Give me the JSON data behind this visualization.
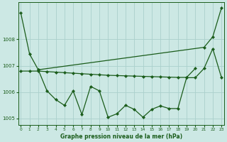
{
  "title": "Graphe pression niveau de la mer (hPa)",
  "bg_color": "#cce8e4",
  "grid_color": "#aad0cc",
  "line_color": "#1a5c1a",
  "hours": [
    0,
    1,
    2,
    3,
    4,
    5,
    6,
    7,
    8,
    9,
    10,
    11,
    12,
    13,
    14,
    15,
    16,
    17,
    18,
    19,
    20,
    21,
    22,
    23
  ],
  "line1_x": [
    0,
    1,
    2,
    21,
    22,
    23
  ],
  "line1_y": [
    1009.0,
    1007.45,
    1006.85,
    1007.7,
    1008.1,
    1009.2
  ],
  "line2_x": [
    0,
    1,
    2,
    3,
    4,
    5,
    6,
    7,
    8,
    9,
    10,
    11,
    12,
    13,
    14,
    15,
    16,
    17,
    18,
    19,
    20
  ],
  "line2_y": [
    1006.8,
    1006.8,
    1006.8,
    1006.78,
    1006.76,
    1006.74,
    1006.72,
    1006.7,
    1006.68,
    1006.66,
    1006.64,
    1006.63,
    1006.62,
    1006.61,
    1006.6,
    1006.59,
    1006.58,
    1006.57,
    1006.56,
    1006.56,
    1006.9
  ],
  "line3_x": [
    2,
    3,
    4,
    5,
    6,
    7,
    8,
    9,
    10,
    11,
    12,
    13,
    14,
    15,
    16,
    17,
    18,
    19,
    20,
    21,
    22,
    23
  ],
  "line3_y": [
    1006.85,
    1006.05,
    1005.72,
    1005.5,
    1006.05,
    1005.15,
    1006.22,
    1006.05,
    1005.05,
    1005.18,
    1005.5,
    1005.35,
    1005.05,
    1005.35,
    1005.48,
    1005.38,
    1005.38,
    1006.55,
    1006.55,
    1006.9,
    1007.65,
    1006.55
  ],
  "ylim": [
    1004.75,
    1009.4
  ],
  "yticks": [
    1005,
    1006,
    1007,
    1008
  ],
  "xlim": [
    -0.3,
    23.3
  ],
  "figsize": [
    3.2,
    2.0
  ],
  "dpi": 100
}
